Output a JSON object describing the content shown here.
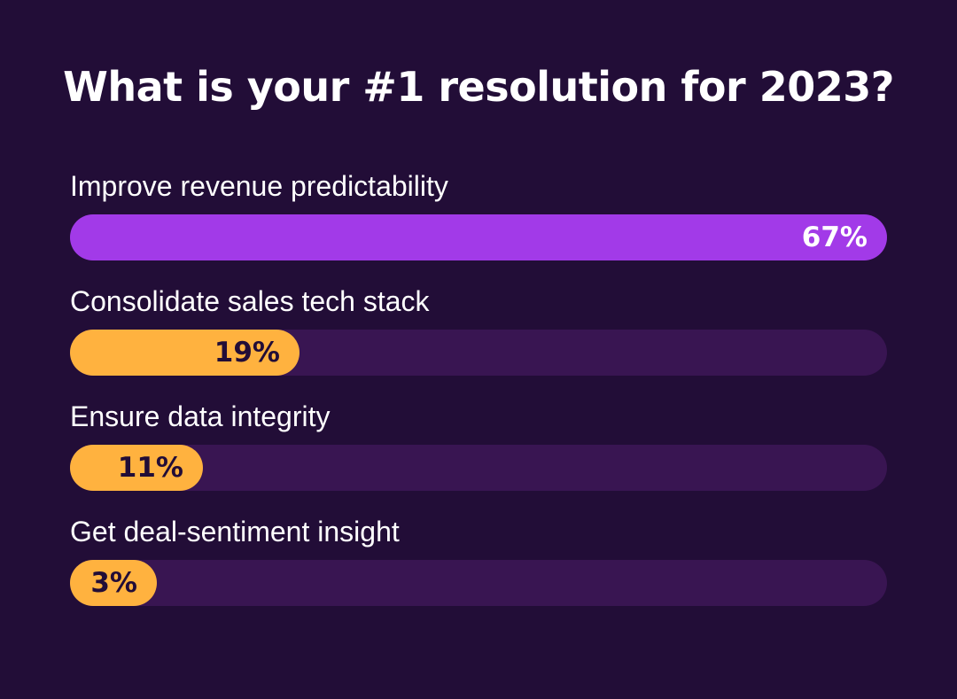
{
  "title": "What is your #1 resolution for 2023?",
  "colors": {
    "background": "#220d37",
    "track": "#391552",
    "leading_bar": "#a23ae8",
    "other_bars": "#ffb23f",
    "leading_text": "#ffffff",
    "other_text": "#220d37"
  },
  "chart_data": {
    "type": "bar",
    "orientation": "horizontal",
    "title": "What is your #1 resolution for 2023?",
    "xlim": [
      0,
      100
    ],
    "categories": [
      "Improve revenue predictability",
      "Consolidate sales tech stack",
      "Ensure data integrity",
      "Get deal-sentiment insight"
    ],
    "values": [
      67,
      19,
      11,
      3
    ],
    "value_labels": [
      "67%",
      "19%",
      "11%",
      "3%"
    ],
    "grid": false,
    "legend": "none"
  }
}
